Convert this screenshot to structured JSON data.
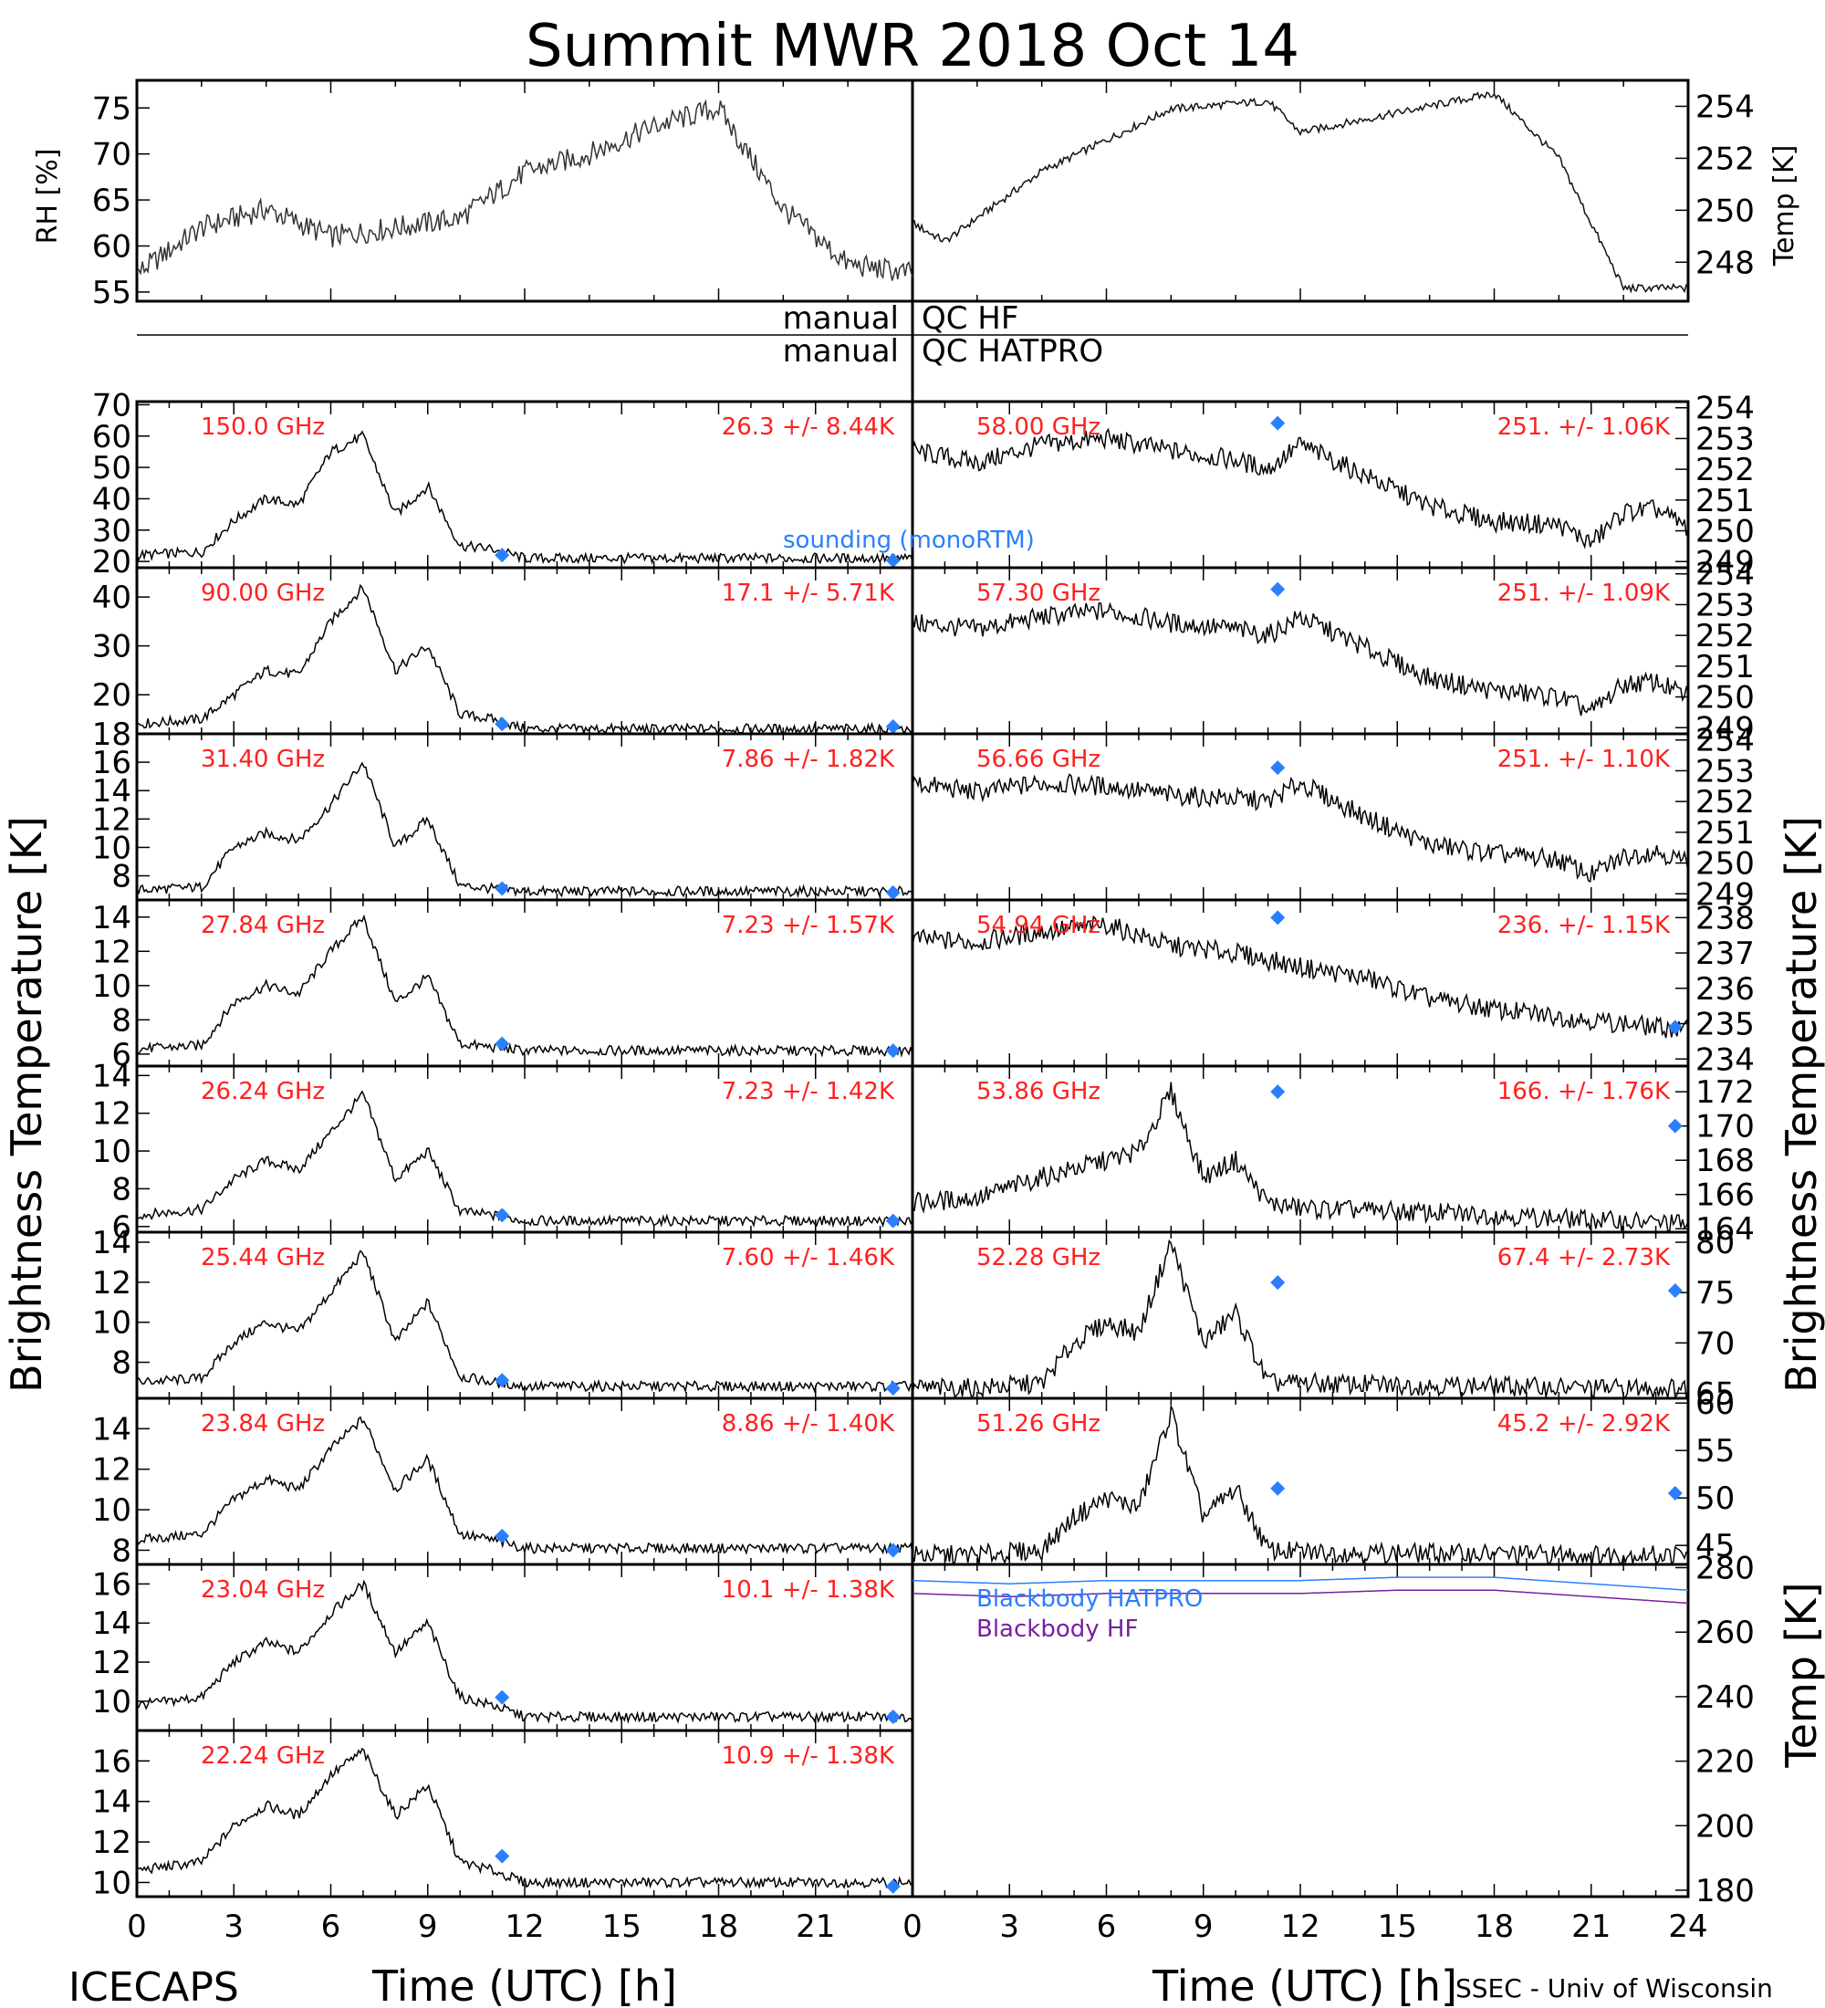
{
  "title": "Summit MWR 2018 Oct 14",
  "top_left_ylabel": "RH [%]",
  "top_right_ylabel": "Temp [K]",
  "top_left_ticks": [
    "55",
    "60",
    "65",
    "70",
    "75"
  ],
  "top_right_ticks": [
    "248",
    "250",
    "252",
    "254"
  ],
  "qc_left": [
    "manual",
    "manual"
  ],
  "qc_right": [
    "QC HF",
    "QC HATPRO"
  ],
  "left_ylabel": "Brightness Temperature [K]",
  "right_ylabel": "Brightness Temperature [K]",
  "bb_ylabel": "Temp [K]",
  "sounding_label": "sounding (monoRTM)",
  "blackbody_hatpro": "Blackbody HATPRO",
  "blackbody_hf": "Blackbody HF",
  "xlabel": "Time (UTC) [h]",
  "x_ticks_left": [
    "0",
    "3",
    "6",
    "9",
    "12",
    "15",
    "18",
    "21"
  ],
  "x_ticks_right": [
    "0",
    "3",
    "6",
    "9",
    "12",
    "15",
    "18",
    "21",
    "24"
  ],
  "footer_left": "ICECAPS",
  "footer_right": "SSEC - Univ of Wisconsin",
  "colors": {
    "freq_text": "#ff2020",
    "sounding": "#2a7fff",
    "blackbody_hatpro": "#2a7fff",
    "blackbody_hf": "#7a1fa0",
    "trace": "#000000"
  },
  "chart_data": [
    {
      "type": "line",
      "title": "",
      "ylabel": "RH [%]",
      "xlabel": "",
      "xlim": [
        0,
        12
      ],
      "ylim": [
        54,
        78
      ],
      "series": [
        {
          "name": "RH",
          "x": [
            0,
            1,
            2,
            3,
            4,
            5,
            6,
            7,
            8,
            9,
            10,
            11,
            12
          ],
          "values": [
            57,
            62,
            64,
            61,
            62,
            63,
            68,
            70,
            73,
            75,
            64,
            58,
            57
          ]
        }
      ]
    },
    {
      "type": "line",
      "title": "",
      "ylabel": "Temp [K]",
      "xlabel": "",
      "xlim": [
        12,
        24
      ],
      "ylim": [
        246.5,
        255
      ],
      "series": [
        {
          "name": "Temp",
          "x": [
            12,
            12.5,
            14,
            16,
            17.5,
            18,
            19,
            20,
            21,
            22,
            23,
            24
          ],
          "values": [
            249.5,
            248.8,
            251.5,
            253.9,
            254.2,
            253,
            253.5,
            254,
            254.5,
            252,
            247,
            247
          ]
        }
      ]
    },
    {
      "type": "line",
      "frequency": "150.0 GHz",
      "stats": "26.3 +/-  8.44K",
      "ylim": [
        18,
        71
      ],
      "yticks": [
        "20",
        "30",
        "40",
        "50",
        "60",
        "70"
      ],
      "x": [
        0,
        2,
        3,
        4,
        5,
        6,
        7,
        8,
        9,
        10,
        11,
        12
      ],
      "values": [
        22,
        23,
        33,
        40,
        38,
        55,
        60,
        35,
        44,
        25,
        24,
        21
      ],
      "sounding": [
        [
          11.3,
          22
        ],
        [
          23.4,
          20
        ]
      ]
    },
    {
      "type": "line",
      "frequency": "90.00 GHz",
      "stats": "17.1 +/-  5.71K",
      "ylim": [
        12,
        46
      ],
      "yticks": [
        "20",
        "30",
        "40"
      ],
      "x": [
        0,
        2,
        3,
        4,
        5,
        6,
        7,
        8,
        9,
        10,
        11,
        12
      ],
      "values": [
        14,
        15,
        20,
        25,
        24,
        35,
        42,
        25,
        30,
        16,
        15,
        13
      ],
      "sounding": [
        [
          11.3,
          14
        ],
        [
          23.4,
          13
        ]
      ]
    },
    {
      "type": "line",
      "frequency": "31.40 GHz",
      "stats": "7.86 +/- 1.82K",
      "ylim": [
        6.3,
        18
      ],
      "yticks": [
        "8",
        "10",
        "12",
        "14",
        "16",
        "18"
      ],
      "x": [
        0,
        2,
        3,
        4,
        5,
        6,
        7,
        8,
        9,
        10,
        11,
        12
      ],
      "values": [
        7,
        7.2,
        10,
        11,
        10.5,
        13,
        16,
        10,
        12,
        7.3,
        7.1,
        6.9
      ],
      "sounding": [
        [
          11.3,
          7.1
        ],
        [
          23.4,
          6.8
        ]
      ]
    },
    {
      "type": "line",
      "frequency": "27.84 GHz",
      "stats": "7.23 +/- 1.57K",
      "ylim": [
        5.3,
        15
      ],
      "yticks": [
        "6",
        "8",
        "10",
        "12",
        "14"
      ],
      "x": [
        0,
        2,
        3,
        4,
        5,
        6,
        7,
        8,
        9,
        10,
        11,
        12
      ],
      "values": [
        6.3,
        6.5,
        9,
        10,
        9.5,
        12,
        14,
        9,
        10.5,
        6.6,
        6.4,
        6.2
      ],
      "sounding": [
        [
          11.3,
          6.6
        ],
        [
          23.4,
          6.2
        ]
      ]
    },
    {
      "type": "line",
      "frequency": "26.24 GHz",
      "stats": "7.23 +/- 1.42K",
      "ylim": [
        5.7,
        14.5
      ],
      "yticks": [
        "6",
        "8",
        "10",
        "12",
        "14"
      ],
      "x": [
        0,
        2,
        3,
        4,
        5,
        6,
        7,
        8,
        9,
        10,
        11,
        12
      ],
      "values": [
        6.6,
        6.9,
        8.5,
        9.5,
        9,
        11,
        13,
        8.5,
        10,
        6.8,
        6.6,
        6.3
      ],
      "sounding": [
        [
          11.3,
          6.6
        ],
        [
          23.4,
          6.3
        ]
      ]
    },
    {
      "type": "line",
      "frequency": "25.44 GHz",
      "stats": "7.60 +/- 1.46K",
      "ylim": [
        6.2,
        14.5
      ],
      "yticks": [
        "8",
        "10",
        "12",
        "14"
      ],
      "x": [
        0,
        2,
        3,
        4,
        5,
        6,
        7,
        8,
        9,
        10,
        11,
        12
      ],
      "values": [
        7,
        7.2,
        9,
        10,
        9.5,
        11.5,
        13.5,
        9,
        11,
        7.3,
        7,
        6.8
      ],
      "sounding": [
        [
          11.3,
          7.1
        ],
        [
          23.4,
          6.7
        ]
      ]
    },
    {
      "type": "line",
      "frequency": "23.84 GHz",
      "stats": "8.86 +/- 1.40K",
      "ylim": [
        7.3,
        15.5
      ],
      "yticks": [
        "8",
        "10",
        "12",
        "14"
      ],
      "x": [
        0,
        2,
        3,
        4,
        5,
        6,
        7,
        8,
        9,
        10,
        11,
        12
      ],
      "values": [
        8.5,
        8.8,
        10.5,
        11.5,
        11,
        13,
        14.5,
        11,
        12.5,
        8.8,
        8.5,
        8.1
      ],
      "sounding": [
        [
          11.3,
          8.7
        ],
        [
          23.4,
          8
        ]
      ]
    },
    {
      "type": "line",
      "frequency": "23.04 GHz",
      "stats": "10.1 +/- 1.38K",
      "ylim": [
        8.5,
        17
      ],
      "yticks": [
        "10",
        "12",
        "14",
        "16"
      ],
      "x": [
        0,
        2,
        3,
        4,
        5,
        6,
        7,
        8,
        9,
        10,
        11,
        12
      ],
      "values": [
        9.8,
        10.2,
        12,
        13,
        12.5,
        14.5,
        16,
        12.5,
        14,
        10.2,
        9.8,
        9.2
      ],
      "sounding": [
        [
          11.3,
          10.2
        ],
        [
          23.4,
          9.2
        ]
      ]
    },
    {
      "type": "line",
      "frequency": "22.24 GHz",
      "stats": "10.9 +/- 1.38K",
      "ylim": [
        9.3,
        17.5
      ],
      "yticks": [
        "10",
        "12",
        "14",
        "16"
      ],
      "x": [
        0,
        2,
        3,
        4,
        5,
        6,
        7,
        8,
        9,
        10,
        11,
        12
      ],
      "values": [
        10.6,
        11,
        12.8,
        13.8,
        13.3,
        15.3,
        16.5,
        13.3,
        14.8,
        11,
        10.6,
        10
      ],
      "sounding": [
        [
          11.3,
          11.3
        ],
        [
          23.4,
          9.8
        ]
      ]
    },
    {
      "type": "line",
      "frequency": "58.00 GHz",
      "stats": "251. +/- 1.06K",
      "ylim": [
        248.8,
        254.2
      ],
      "yticks": [
        "249",
        "250",
        "251",
        "252",
        "253",
        "254"
      ],
      "x": [
        0,
        2,
        4,
        6,
        8,
        10,
        11,
        12,
        14,
        16,
        18,
        20,
        21,
        22,
        23,
        24
      ],
      "values": [
        252.6,
        252.2,
        252.8,
        253,
        252.6,
        252.3,
        252,
        252.8,
        251.8,
        250.8,
        250.3,
        250.2,
        249.6,
        250.6,
        250.7,
        250.1
      ],
      "sounding": [
        [
          11.3,
          253.5
        ]
      ]
    },
    {
      "type": "line",
      "frequency": "57.30 GHz",
      "stats": "251. +/- 1.09K",
      "ylim": [
        248.8,
        254.2
      ],
      "yticks": [
        "249",
        "250",
        "251",
        "252",
        "253",
        "254"
      ],
      "x": [
        0,
        2,
        4,
        6,
        8,
        10,
        11,
        12,
        14,
        16,
        18,
        20,
        21,
        22,
        23,
        24
      ],
      "values": [
        252.4,
        252.2,
        252.6,
        252.8,
        252.4,
        252.2,
        252,
        252.6,
        251.6,
        250.6,
        250.2,
        250,
        249.5,
        250.4,
        250.5,
        250
      ],
      "sounding": [
        [
          11.3,
          253.5
        ]
      ]
    },
    {
      "type": "line",
      "frequency": "56.66 GHz",
      "stats": "251. +/- 1.10K",
      "ylim": [
        248.8,
        254.2
      ],
      "yticks": [
        "249",
        "250",
        "251",
        "252",
        "253",
        "254"
      ],
      "x": [
        0,
        2,
        4,
        6,
        8,
        10,
        11,
        12,
        14,
        16,
        18,
        20,
        21,
        22,
        23,
        24
      ],
      "values": [
        252.6,
        252.3,
        252.6,
        252.5,
        252.2,
        252.1,
        252,
        252.6,
        251.5,
        250.6,
        250.3,
        250.1,
        249.6,
        250.2,
        250.4,
        250
      ],
      "sounding": [
        [
          11.3,
          253.1
        ]
      ]
    },
    {
      "type": "line",
      "frequency": "54.94 GHz",
      "stats": "236. +/- 1.15K",
      "ylim": [
        233.8,
        238.5
      ],
      "yticks": [
        "234",
        "235",
        "236",
        "237",
        "238"
      ],
      "x": [
        0,
        2,
        4,
        6,
        8,
        10,
        12,
        14,
        16,
        18,
        20,
        22,
        24
      ],
      "values": [
        237.4,
        237.3,
        237.6,
        237.8,
        237.2,
        237,
        236.6,
        236.3,
        235.7,
        235.4,
        235.2,
        235,
        234.8
      ],
      "sounding": [
        [
          11.3,
          238
        ],
        [
          23.6,
          234.9
        ]
      ]
    },
    {
      "type": "line",
      "frequency": "53.86 GHz",
      "stats": "166. +/- 1.76K",
      "ylim": [
        163.8,
        173.5
      ],
      "yticks": [
        "164",
        "166",
        "168",
        "170",
        "172"
      ],
      "x": [
        0,
        2,
        4,
        6,
        7,
        8,
        9,
        10,
        11,
        12,
        15,
        18,
        21,
        24
      ],
      "values": [
        165.5,
        165.8,
        167,
        168,
        168.5,
        172,
        167,
        168,
        165.5,
        165.2,
        165,
        164.8,
        164.5,
        164.3
      ],
      "sounding": [
        [
          11.3,
          172
        ],
        [
          23.6,
          170
        ]
      ]
    },
    {
      "type": "line",
      "frequency": "52.28 GHz",
      "stats": "67.4 +/- 2.73K",
      "ylim": [
        64.5,
        81
      ],
      "yticks": [
        "65",
        "70",
        "75",
        "80"
      ],
      "x": [
        0,
        2,
        4,
        5,
        6,
        7,
        8,
        9,
        10,
        11,
        12,
        15,
        18,
        21,
        24
      ],
      "values": [
        65.5,
        65.5,
        66,
        70,
        72,
        71,
        80,
        70,
        73,
        66,
        66,
        65.8,
        65.7,
        65.5,
        65.5
      ],
      "sounding": [
        [
          11.3,
          76
        ],
        [
          23.6,
          75.2
        ]
      ]
    },
    {
      "type": "line",
      "frequency": "51.26 GHz",
      "stats": "45.2 +/- 2.92K",
      "ylim": [
        43,
        60.5
      ],
      "yticks": [
        "45",
        "50",
        "55",
        "60"
      ],
      "x": [
        0,
        2,
        4,
        5,
        6,
        7,
        8,
        9,
        10,
        11,
        12,
        15,
        18,
        21,
        24
      ],
      "values": [
        44,
        44,
        44.5,
        48,
        50,
        49,
        59,
        48,
        51,
        44.5,
        44.3,
        44.2,
        44.1,
        44,
        44
      ],
      "sounding": [
        [
          11.3,
          51
        ],
        [
          23.6,
          50.5
        ]
      ]
    },
    {
      "type": "line",
      "title": "",
      "ylabel": "Temp [K]",
      "ylim": [
        178,
        281
      ],
      "yticks": [
        "180",
        "200",
        "220",
        "240",
        "260",
        "280"
      ],
      "series": [
        {
          "name": "Blackbody HATPRO",
          "x": [
            0,
            3,
            6,
            9,
            12,
            15,
            18,
            21,
            24
          ],
          "values": [
            276,
            275,
            276,
            276,
            276,
            277,
            277,
            275,
            273
          ]
        },
        {
          "name": "Blackbody HF",
          "x": [
            0,
            3,
            6,
            9,
            12,
            15,
            18,
            21,
            24
          ],
          "values": [
            272,
            271,
            272,
            272,
            272,
            273,
            273,
            271,
            269
          ]
        }
      ]
    }
  ]
}
